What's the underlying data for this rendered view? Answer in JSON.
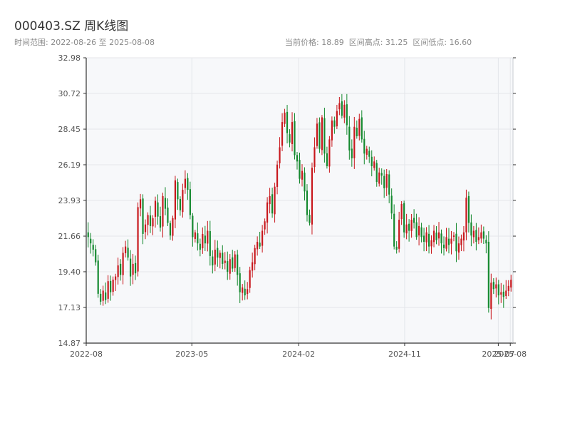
{
  "header": {
    "title": "000403.SZ 周K线图",
    "range_text": "时间范围: 2022-08-26 至 2025-08-08",
    "stats": {
      "current": "当前价格: 18.89",
      "high": "区间高点: 31.25",
      "low": "区间低点: 16.60"
    }
  },
  "chart_data": {
    "type": "candlestick",
    "title": "000403.SZ 周K线图",
    "xlabel": "",
    "ylabel": "",
    "ylim": [
      14.87,
      32.98
    ],
    "y_ticks": [
      "14.87",
      "17.13",
      "19.40",
      "21.66",
      "23.93",
      "26.19",
      "28.45",
      "30.72",
      "32.98"
    ],
    "x_ticks": [
      {
        "label": "2022-08",
        "date": "2022-08-01"
      },
      {
        "label": "2023-05",
        "date": "2023-05-01"
      },
      {
        "label": "2024-02",
        "date": "2024-02-01"
      },
      {
        "label": "2024-11",
        "date": "2024-11-01"
      },
      {
        "label": "2025-07",
        "date": "2025-07-01"
      },
      {
        "label": "2025-08",
        "date": "2025-08-01"
      }
    ],
    "x_range": [
      "2022-08-01",
      "2025-08-08"
    ],
    "grid": true,
    "colors": {
      "up": "#c8171c",
      "down": "#14892e",
      "plot_bg": "#f7f8fa",
      "grid": "#e4e6ea",
      "axis": "#333333"
    },
    "closes": [
      21.6,
      21.2,
      20.8,
      20.0,
      18.0,
      17.5,
      18.2,
      17.6,
      18.8,
      18.1,
      18.9,
      19.1,
      19.8,
      19.2,
      20.6,
      21.0,
      20.3,
      19.1,
      19.9,
      19.3,
      23.5,
      24.0,
      21.8,
      22.4,
      23.0,
      22.3,
      22.8,
      23.9,
      22.9,
      22.2,
      24.2,
      23.4,
      22.5,
      21.7,
      22.8,
      25.2,
      24.0,
      23.3,
      24.6,
      25.3,
      24.6,
      23.0,
      21.6,
      21.9,
      21.2,
      20.8,
      21.8,
      21.2,
      22.0,
      20.4,
      19.8,
      20.8,
      20.3,
      20.6,
      19.9,
      20.1,
      19.4,
      20.2,
      19.6,
      20.5,
      19.2,
      18.1,
      18.4,
      17.9,
      18.3,
      19.5,
      20.0,
      20.9,
      21.3,
      21.0,
      22.0,
      22.6,
      23.8,
      24.2,
      23.1,
      24.8,
      26.2,
      27.3,
      28.9,
      29.5,
      28.2,
      27.6,
      28.9,
      26.8,
      26.4,
      25.3,
      25.8,
      24.5,
      23.0,
      22.5,
      26.0,
      27.3,
      28.8,
      27.2,
      29.2,
      26.9,
      26.1,
      27.8,
      29.0,
      28.6,
      29.6,
      30.1,
      29.3,
      30.0,
      28.7,
      27.1,
      26.6,
      28.6,
      28.0,
      29.1,
      27.8,
      26.9,
      27.2,
      26.7,
      26.1,
      26.4,
      25.1,
      25.7,
      25.5,
      24.7,
      25.6,
      24.3,
      23.1,
      21.0,
      20.8,
      22.7,
      23.7,
      21.9,
      22.4,
      22.0,
      22.7,
      22.5,
      21.6,
      22.3,
      21.6,
      21.3,
      21.9,
      21.0,
      21.4,
      22.0,
      21.4,
      21.9,
      21.2,
      20.9,
      21.6,
      21.1,
      21.5,
      21.7,
      20.7,
      21.2,
      21.5,
      21.9,
      24.1,
      22.5,
      21.7,
      22.0,
      21.3,
      21.6,
      21.9,
      21.5,
      21.2,
      17.1,
      18.7,
      18.3,
      18.6,
      17.9,
      18.1,
      17.8,
      18.2,
      18.5,
      18.89
    ]
  }
}
